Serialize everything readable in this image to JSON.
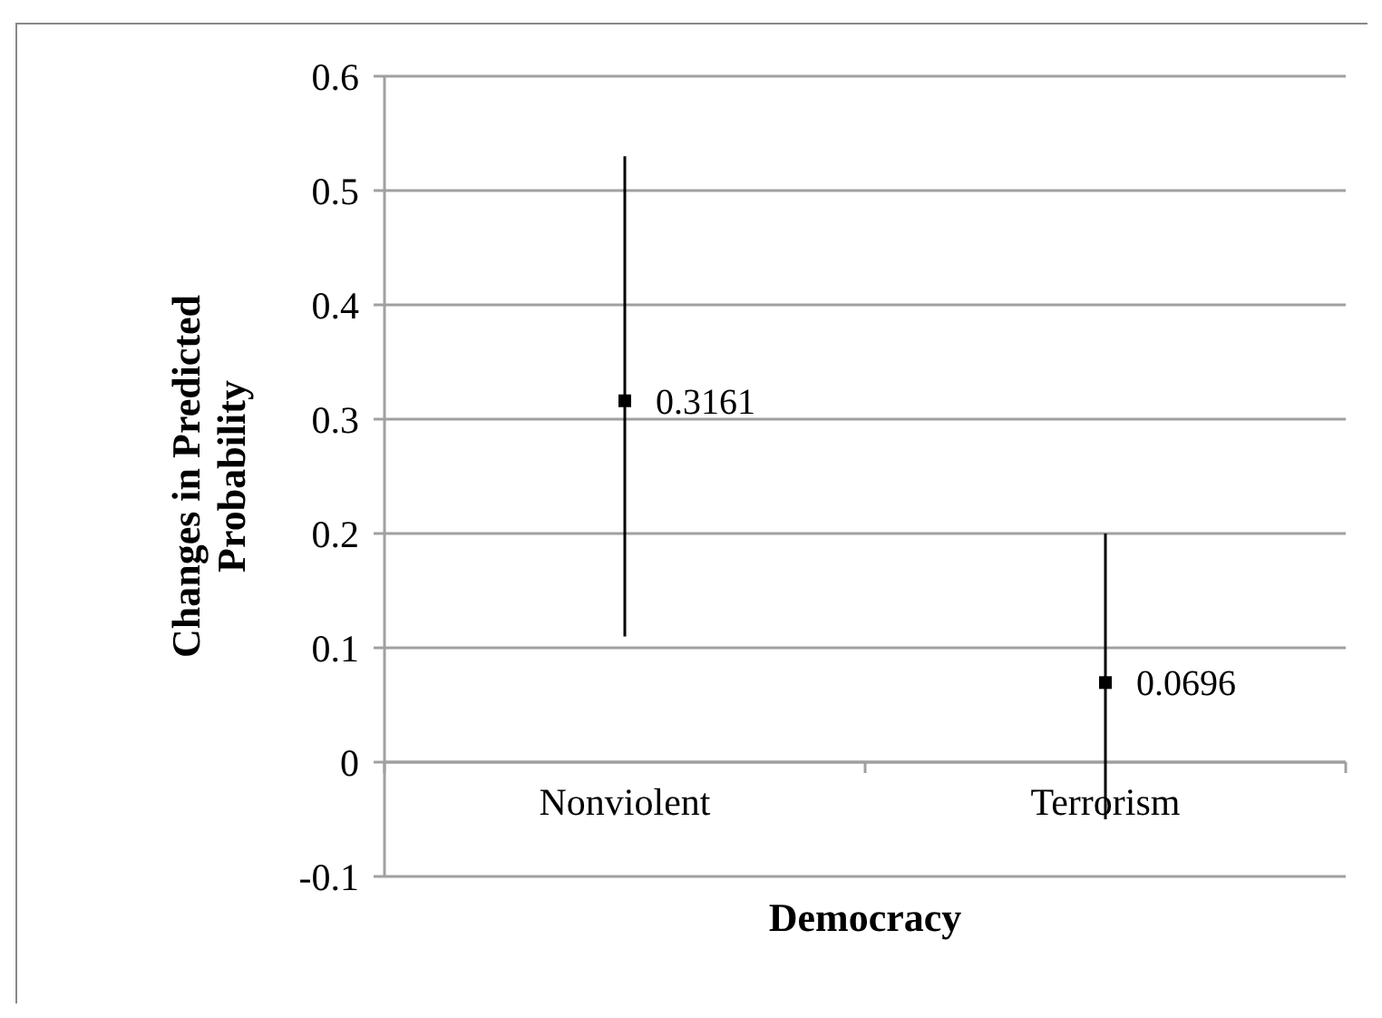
{
  "chart_data": {
    "type": "scatter",
    "xlabel": "Democracy",
    "ylabel": "Changes in Predicted Probability",
    "categories": [
      "Nonviolent",
      "Terrorism"
    ],
    "series": [
      {
        "color": "#000000",
        "values": [
          0.3161,
          0.0696
        ],
        "errors": [
          [
            0.11,
            0.53
          ],
          [
            -0.05,
            0.2
          ]
        ]
      }
    ],
    "ylim": [
      -0.1,
      0.6
    ],
    "yticks": [
      -0.1,
      0,
      0.1,
      0.2,
      0.3,
      0.4,
      0.5,
      0.6
    ],
    "grid": "y",
    "marker": "square",
    "data_labels": true
  }
}
